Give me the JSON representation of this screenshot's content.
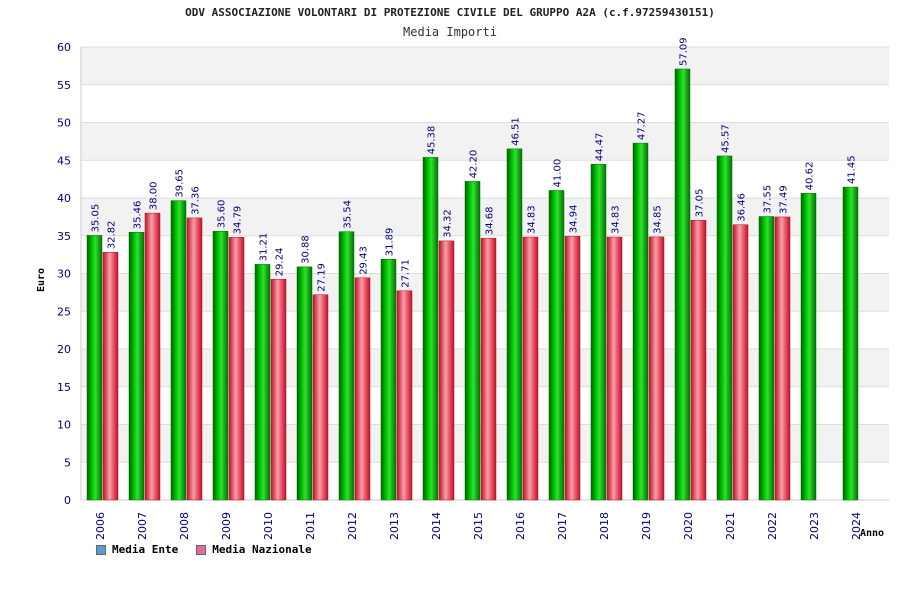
{
  "chart_data": {
    "type": "bar",
    "title": "ODV ASSOCIAZIONE VOLONTARI DI PROTEZIONE CIVILE DEL GRUPPO A2A (c.f.97259430151)",
    "subtitle": "Media Importi",
    "xlabel": "Anno",
    "ylabel": "Euro",
    "ylim": [
      0,
      60
    ],
    "yticks": [
      0,
      5,
      10,
      15,
      20,
      25,
      30,
      35,
      40,
      45,
      50,
      55,
      60
    ],
    "categories": [
      "2006",
      "2007",
      "2008",
      "2009",
      "2010",
      "2011",
      "2012",
      "2013",
      "2014",
      "2015",
      "2016",
      "2017",
      "2018",
      "2019",
      "2020",
      "2021",
      "2022",
      "2023",
      "2024"
    ],
    "series": [
      {
        "name": "Media Ente",
        "color": "#00a000",
        "values": [
          35.05,
          35.46,
          39.65,
          35.6,
          31.21,
          30.88,
          35.54,
          31.89,
          45.38,
          42.2,
          46.51,
          41.0,
          44.47,
          47.27,
          57.09,
          45.57,
          37.55,
          40.62,
          41.45
        ]
      },
      {
        "name": "Media Nazionale",
        "color": "#e0203a",
        "values": [
          32.82,
          38.0,
          37.36,
          34.79,
          29.24,
          27.19,
          29.43,
          27.71,
          34.32,
          34.68,
          34.83,
          34.94,
          34.83,
          34.85,
          37.05,
          36.46,
          37.49,
          null,
          null
        ]
      }
    ],
    "value_labels": {
      "Media Ente": [
        "35.05",
        "35.46",
        "39.65",
        "35.60",
        "31.21",
        "30.88",
        "35.54",
        "31.89",
        "45.38",
        "42.20",
        "46.51",
        "41.00",
        "44.47",
        "47.27",
        "57.09",
        "45.57",
        "37.55",
        "40.62",
        "41.45"
      ],
      "Media Nazionale": [
        "32.82",
        "38.00",
        "37.36",
        "34.79",
        "29.24",
        "27.19",
        "29.43",
        "27.71",
        "34.32",
        "34.68",
        "34.83",
        "34.94",
        "34.83",
        "34.85",
        "37.05",
        "36.46",
        "37.49",
        "",
        ""
      ]
    },
    "grid": true,
    "legend_position": "bottom-left",
    "legend_swatch_colors": [
      "#5b9bd5",
      "#e06aa0"
    ]
  }
}
